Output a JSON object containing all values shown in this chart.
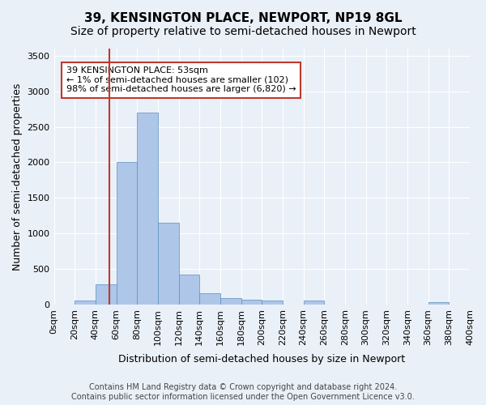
{
  "title": "39, KENSINGTON PLACE, NEWPORT, NP19 8GL",
  "subtitle": "Size of property relative to semi-detached houses in Newport",
  "xlabel": "Distribution of semi-detached houses by size in Newport",
  "ylabel": "Number of semi-detached properties",
  "footer_line1": "Contains HM Land Registry data © Crown copyright and database right 2024.",
  "footer_line2": "Contains public sector information licensed under the Open Government Licence v3.0.",
  "annotation_title": "39 KENSINGTON PLACE: 53sqm",
  "annotation_line2": "← 1% of semi-detached houses are smaller (102)",
  "annotation_line3": "98% of semi-detached houses are larger (6,820) →",
  "property_size": 53,
  "bar_edges": [
    0,
    20,
    40,
    60,
    80,
    100,
    120,
    140,
    160,
    180,
    200,
    220,
    240,
    260,
    280,
    300,
    320,
    340,
    360,
    380,
    400
  ],
  "bar_heights": [
    0,
    55,
    290,
    2000,
    2700,
    1150,
    420,
    165,
    95,
    65,
    60,
    0,
    55,
    0,
    0,
    0,
    0,
    0,
    35,
    0
  ],
  "bar_color": "#aec6e8",
  "bar_edgecolor": "#5a8fc2",
  "vline_color": "#c0392b",
  "vline_x": 53,
  "ylim": [
    0,
    3600
  ],
  "yticks": [
    0,
    500,
    1000,
    1500,
    2000,
    2500,
    3000,
    3500
  ],
  "bg_color": "#eaf0f8",
  "plot_bg_color": "#eaf0f8",
  "annotation_box_color": "#ffffff",
  "annotation_border_color": "#c0392b",
  "title_fontsize": 11,
  "subtitle_fontsize": 10,
  "xlabel_fontsize": 9,
  "ylabel_fontsize": 9,
  "tick_fontsize": 8,
  "annotation_fontsize": 8,
  "footer_fontsize": 7
}
